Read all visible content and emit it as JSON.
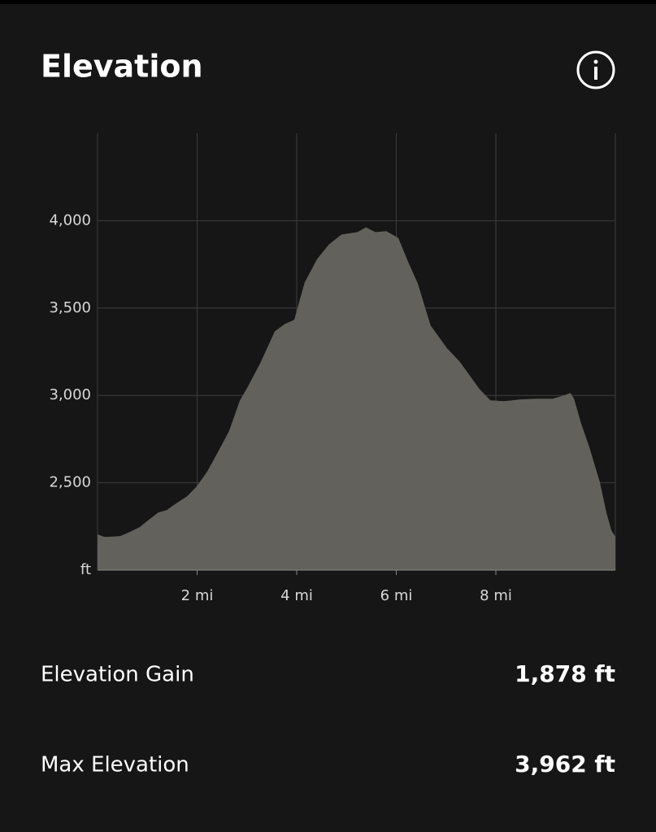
{
  "header": {
    "title": "Elevation"
  },
  "chart_data": {
    "type": "area",
    "color": "#62615c",
    "grid": true,
    "x": [
      0,
      0.13,
      0.24,
      0.46,
      0.65,
      0.85,
      1.01,
      1.22,
      1.39,
      1.6,
      1.8,
      1.99,
      2.2,
      2.45,
      2.64,
      2.86,
      3.02,
      3.27,
      3.56,
      3.76,
      3.95,
      4.16,
      4.41,
      4.65,
      4.9,
      5.22,
      5.39,
      5.58,
      5.8,
      6.04,
      6.24,
      6.43,
      6.69,
      7.02,
      7.27,
      7.48,
      7.67,
      7.89,
      8.16,
      8.49,
      8.82,
      9.14,
      9.31,
      9.5,
      9.57,
      9.71,
      9.88,
      10.09,
      10.22,
      10.32,
      10.4
    ],
    "values": [
      2205,
      2191,
      2191,
      2195,
      2219,
      2247,
      2284,
      2330,
      2344,
      2386,
      2423,
      2479,
      2563,
      2693,
      2795,
      2972,
      3051,
      3186,
      3367,
      3409,
      3433,
      3647,
      3781,
      3865,
      3921,
      3935,
      3962,
      3935,
      3940,
      3902,
      3763,
      3642,
      3400,
      3270,
      3195,
      3112,
      3037,
      2972,
      2967,
      2977,
      2981,
      2981,
      2995,
      3014,
      2981,
      2842,
      2702,
      2502,
      2330,
      2228,
      2191
    ],
    "xlim": [
      0,
      10.4
    ],
    "ylim": [
      2000,
      4500
    ],
    "xticks": [
      {
        "value": 2,
        "label": "2 mi"
      },
      {
        "value": 4,
        "label": "4 mi"
      },
      {
        "value": 6,
        "label": "6 mi"
      },
      {
        "value": 8,
        "label": "8 mi"
      }
    ],
    "yticks": [
      {
        "value": 2000,
        "label": "ft"
      },
      {
        "value": 2500,
        "label": "2,500"
      },
      {
        "value": 3000,
        "label": "3,000"
      },
      {
        "value": 3500,
        "label": "3,500"
      },
      {
        "value": 4000,
        "label": "4,000"
      }
    ]
  },
  "stats": [
    {
      "label": "Elevation Gain",
      "value": "1,878 ft"
    },
    {
      "label": "Max Elevation",
      "value": "3,962 ft"
    }
  ]
}
